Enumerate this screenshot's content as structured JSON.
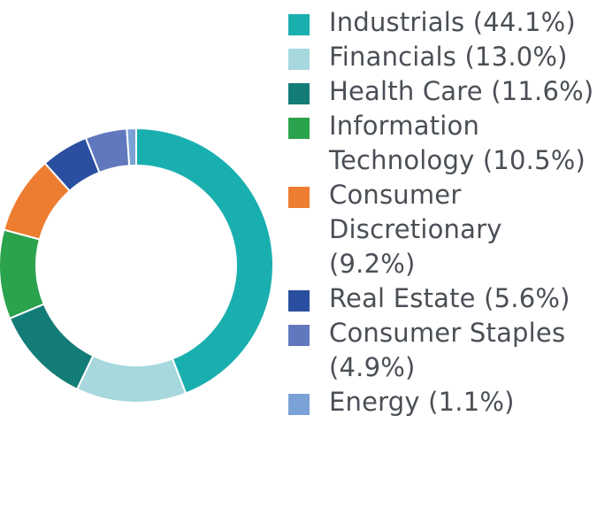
{
  "chart_data": {
    "type": "pie",
    "donut": true,
    "legend_position": "right",
    "slices": [
      {
        "label": "Industrials",
        "value": 44.1,
        "text": [
          "Industrials (44.1%)"
        ],
        "color": "#1AAFAF"
      },
      {
        "label": "Financials",
        "value": 13.0,
        "text": [
          "Financials (13.0%)"
        ],
        "color": "#A6D8DD"
      },
      {
        "label": "Health Care",
        "value": 11.6,
        "text": [
          "Health Care (11.6%)"
        ],
        "color": "#137C77"
      },
      {
        "label": "Information Technology",
        "value": 10.5,
        "text": [
          "Information",
          "Technology (10.5%)"
        ],
        "color": "#2BA24C"
      },
      {
        "label": "Consumer Discretionary",
        "value": 9.2,
        "text": [
          "Consumer",
          "Discretionary",
          "(9.2%)"
        ],
        "color": "#ED7D31"
      },
      {
        "label": "Real Estate",
        "value": 5.6,
        "text": [
          "Real Estate (5.6%)"
        ],
        "color": "#2A4FA0"
      },
      {
        "label": "Consumer Staples",
        "value": 4.9,
        "text": [
          "Consumer Staples",
          "(4.9%)"
        ],
        "color": "#6178BE"
      },
      {
        "label": "Energy",
        "value": 1.1,
        "text": [
          "Energy (1.1%)"
        ],
        "color": "#7BA2D6"
      }
    ]
  }
}
